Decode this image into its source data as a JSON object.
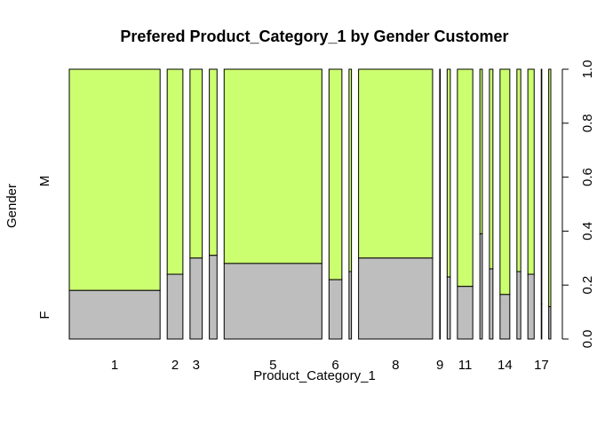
{
  "chart_data": {
    "type": "spineplot",
    "title": "Prefered Product_Category_1 by Gender Customer",
    "xlabel": "Product_Category_1",
    "ylabel": "Gender",
    "x_tick_labels": [
      "1",
      "2",
      "3",
      "5",
      "6",
      "8",
      "9",
      "11",
      "14",
      "17"
    ],
    "y_category_labels": [
      "F",
      "M"
    ],
    "right_axis_ticks": [
      "0.0",
      "0.2",
      "0.4",
      "0.6",
      "0.8",
      "1.0"
    ],
    "ylim": [
      0,
      1
    ],
    "colors": {
      "F": "#bebebe",
      "M": "#ccff70"
    },
    "categories": [
      "1",
      "2",
      "3",
      "4",
      "5",
      "6",
      "7",
      "8",
      "9",
      "10",
      "11",
      "12",
      "13",
      "14",
      "15",
      "16",
      "17",
      "18"
    ],
    "relative_width": [
      0.26,
      0.045,
      0.035,
      0.022,
      0.28,
      0.037,
      0.007,
      0.212,
      0.001,
      0.009,
      0.044,
      0.007,
      0.01,
      0.028,
      0.011,
      0.018,
      0.001,
      0.006
    ],
    "f_share": [
      0.18,
      0.24,
      0.3,
      0.31,
      0.28,
      0.22,
      0.25,
      0.3,
      0.22,
      0.23,
      0.195,
      0.39,
      0.26,
      0.165,
      0.25,
      0.24,
      0.13,
      0.12
    ]
  }
}
